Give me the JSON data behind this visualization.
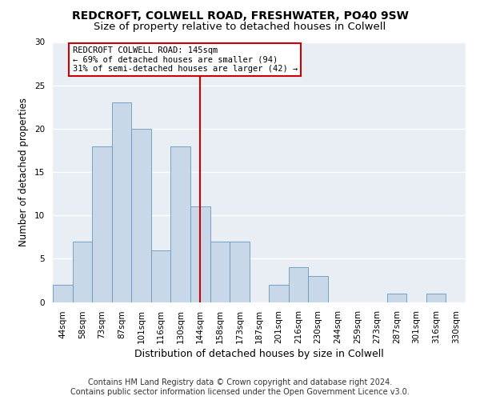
{
  "title1": "REDCROFT, COLWELL ROAD, FRESHWATER, PO40 9SW",
  "title2": "Size of property relative to detached houses in Colwell",
  "xlabel": "Distribution of detached houses by size in Colwell",
  "ylabel": "Number of detached properties",
  "categories": [
    "44sqm",
    "58sqm",
    "73sqm",
    "87sqm",
    "101sqm",
    "116sqm",
    "130sqm",
    "144sqm",
    "158sqm",
    "173sqm",
    "187sqm",
    "201sqm",
    "216sqm",
    "230sqm",
    "244sqm",
    "259sqm",
    "273sqm",
    "287sqm",
    "301sqm",
    "316sqm",
    "330sqm"
  ],
  "values": [
    2,
    7,
    18,
    23,
    20,
    6,
    18,
    11,
    7,
    7,
    0,
    2,
    4,
    3,
    0,
    0,
    0,
    1,
    0,
    1,
    0
  ],
  "bar_color": "#c8d8e8",
  "bar_edge_color": "#6699bb",
  "vline_index": 7,
  "vline_color": "#cc0000",
  "annotation_text": "REDCROFT COLWELL ROAD: 145sqm\n← 69% of detached houses are smaller (94)\n31% of semi-detached houses are larger (42) →",
  "annotation_box_color": "white",
  "annotation_box_edge_color": "#cc0000",
  "ylim": [
    0,
    30
  ],
  "yticks": [
    0,
    5,
    10,
    15,
    20,
    25,
    30
  ],
  "footer1": "Contains HM Land Registry data © Crown copyright and database right 2024.",
  "footer2": "Contains public sector information licensed under the Open Government Licence v3.0.",
  "bg_color": "#e8eef4",
  "grid_color": "white",
  "title1_fontsize": 10,
  "title2_fontsize": 9.5,
  "xlabel_fontsize": 9,
  "ylabel_fontsize": 8.5,
  "tick_fontsize": 7.5,
  "footer_fontsize": 7,
  "annot_fontsize": 7.5
}
